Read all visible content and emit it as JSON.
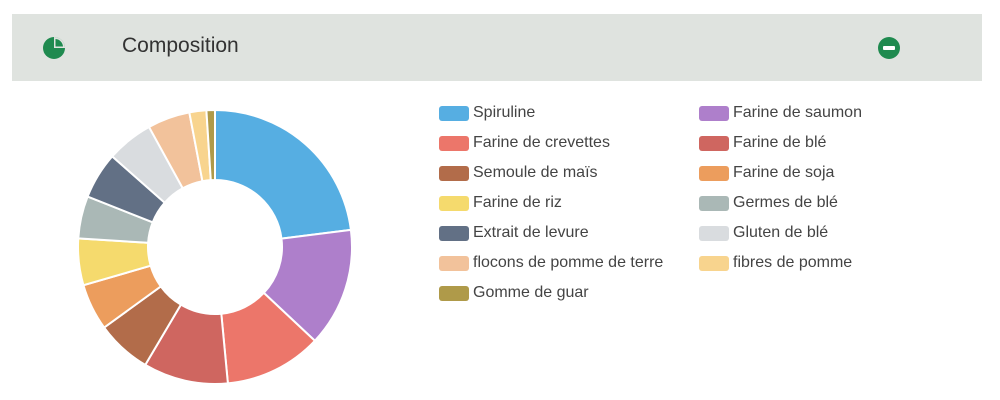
{
  "header": {
    "title": "Composition",
    "icon": "pie-chart-icon",
    "collapse_icon": "minus-circle-icon",
    "accent": "#1f8a4f"
  },
  "chart_data": {
    "type": "pie",
    "donut": true,
    "legend_position": "right",
    "series": [
      {
        "name": "Spiruline",
        "value": 23,
        "color": "#56aee2"
      },
      {
        "name": "Farine de saumon",
        "value": 14,
        "color": "#ae7fcb"
      },
      {
        "name": "Farine de crevettes",
        "value": 11.5,
        "color": "#ec766a"
      },
      {
        "name": "Farine de blé",
        "value": 10,
        "color": "#cf6660"
      },
      {
        "name": "Semoule de maïs",
        "value": 6.5,
        "color": "#b26c4a"
      },
      {
        "name": "Farine de soja",
        "value": 5.5,
        "color": "#ec9d5d"
      },
      {
        "name": "Farine de riz",
        "value": 5.5,
        "color": "#f5da6d"
      },
      {
        "name": "Germes de blé",
        "value": 5,
        "color": "#aab8b6"
      },
      {
        "name": "Extrait de levure",
        "value": 5.5,
        "color": "#627085"
      },
      {
        "name": "Gluten de blé",
        "value": 5.5,
        "color": "#d9dcdf"
      },
      {
        "name": "flocons de pomme de terre",
        "value": 5,
        "color": "#f2c29b"
      },
      {
        "name": "fibres de pomme",
        "value": 2,
        "color": "#f8d48e"
      },
      {
        "name": "Gomme de guar",
        "value": 1,
        "color": "#af9a49"
      }
    ]
  }
}
